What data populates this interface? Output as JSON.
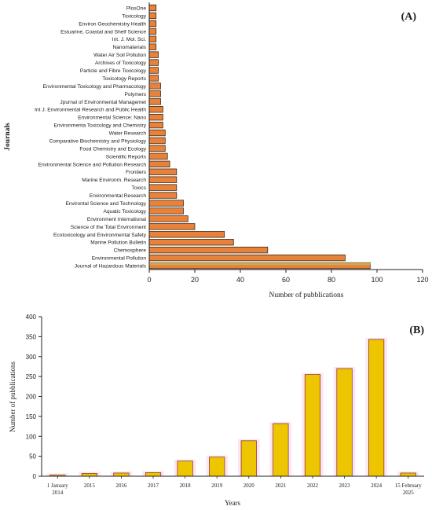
{
  "chart_data": [
    {
      "panel_label": "(A)",
      "type": "bar",
      "orientation": "horizontal",
      "xlabel": "Number of pubblications",
      "ylabel": "Journals",
      "xlim": [
        0,
        120
      ],
      "xticks": [
        "0",
        "20",
        "40",
        "60",
        "80",
        "100",
        "120"
      ],
      "grid": false,
      "colors": {
        "bar": "#e8823a",
        "bar_edge": "#3a2a1a",
        "highlight": "#c8b45a"
      },
      "categories": [
        "PlosOne",
        "Toxicology",
        "Environ Geochemistry  Health",
        "Estuarine, Coastal and Shelf Science",
        "Int. J. Mol. Sci.",
        "Nanomaterials",
        "Water Air Soil Pollution",
        "Archives of Toxicology",
        "Particle and Fibre Toxicology",
        "Toxicology Reports",
        "Environmental Toxicology and Pharmacology",
        "Polymers",
        "Jpurnal of Environmental Managemet",
        "Int J. Environmental Research and Public Health",
        "Environmental Science: Nano",
        "Environmenta Toxicology and Chemistry",
        "Water Research",
        "Comparative Biochemistry and Physiology",
        "Food Chemistry and Ecology",
        "Scientific Reports",
        "Environmental Science and Pollution Research",
        "Frontiers",
        "Marine Environm. Research",
        "Toxics",
        "Environmental Research",
        "Environtal Science and Technology",
        "Aquatic Toxicology",
        "Environment International",
        "Science of the Total Environment",
        "Ecotoxicology and Environmental Safety",
        "Marine Pollution Bulletin",
        "Chemosphere",
        "Environmental Pollution",
        "Journal of Hazardous Materials"
      ],
      "values": [
        3,
        3,
        3,
        3,
        3,
        3,
        4,
        4,
        4,
        4,
        5,
        5,
        5,
        6,
        6,
        6,
        7,
        7,
        7,
        8,
        9,
        12,
        12,
        12,
        12,
        15,
        15,
        17,
        20,
        33,
        37,
        52,
        86,
        97
      ]
    },
    {
      "panel_label": "(B)",
      "type": "bar",
      "orientation": "vertical",
      "xlabel": "Years",
      "ylabel": "Number of pubblications",
      "ylim": [
        0,
        400
      ],
      "yticks": [
        "0",
        "50",
        "100",
        "150",
        "200",
        "250",
        "300",
        "350",
        "400"
      ],
      "grid": false,
      "colors": {
        "bar": "#eec600",
        "bar_edge": "#8a2030",
        "bar_glow": "#fbe3f2"
      },
      "categories": [
        [
          "1 January",
          "2014"
        ],
        [
          "2015"
        ],
        [
          "2016"
        ],
        [
          "2017"
        ],
        [
          "2018"
        ],
        [
          "2019"
        ],
        [
          "2020"
        ],
        [
          "2021"
        ],
        [
          "2022"
        ],
        [
          "2023"
        ],
        [
          "2024"
        ],
        [
          "15 February",
          "2025"
        ]
      ],
      "values": [
        3,
        7,
        8,
        9,
        38,
        48,
        89,
        132,
        255,
        270,
        343,
        8
      ]
    }
  ]
}
